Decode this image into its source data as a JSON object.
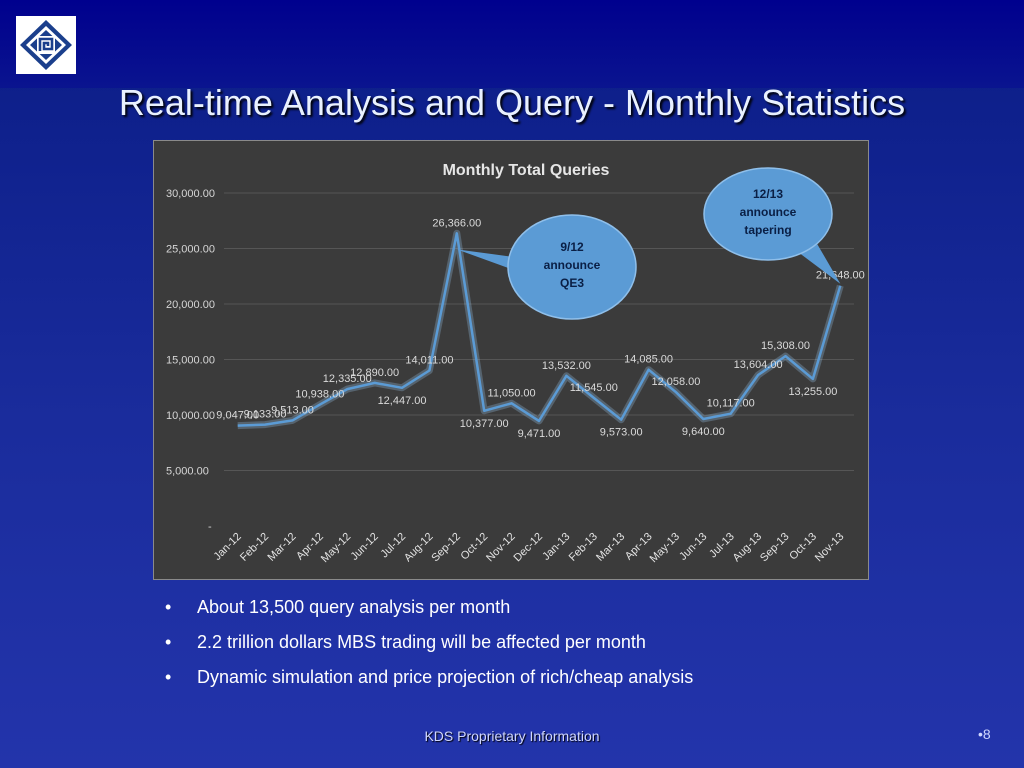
{
  "slide": {
    "title": "Real-time Analysis and Query - Monthly Statistics",
    "logo_icon": "kds-square-spiral-logo-icon",
    "footer": "KDS Proprietary Information",
    "page_number": "•8"
  },
  "bullets": [
    {
      "marker": "•",
      "text": "About 13,500  query analysis per month"
    },
    {
      "marker": "•",
      "text": "2.2 trillion dollars  MBS trading will be affected per month"
    },
    {
      "marker": "•",
      "text": "Dynamic simulation  and price projection of rich/cheap analysis"
    }
  ],
  "chart_data": {
    "type": "line",
    "title": "Monthly Total Queries",
    "xlabel": "",
    "ylabel": "",
    "ylim": [
      0,
      30000
    ],
    "yticks": [
      {
        "value": 0,
        "label": "-"
      },
      {
        "value": 5000,
        "label": "5,000.00"
      },
      {
        "value": 10000,
        "label": "10,000.00"
      },
      {
        "value": 15000,
        "label": "15,000.00"
      },
      {
        "value": 20000,
        "label": "20,000.00"
      },
      {
        "value": 25000,
        "label": "25,000.00"
      },
      {
        "value": 30000,
        "label": "30,000.00"
      }
    ],
    "grid": true,
    "line_color": "#5b9bd5",
    "categories": [
      "Jan-12",
      "Feb-12",
      "Mar-12",
      "Apr-12",
      "May-12",
      "Jun-12",
      "Jul-12",
      "Aug-12",
      "Sep-12",
      "Oct-12",
      "Nov-12",
      "Dec-12",
      "Jan-13",
      "Feb-13",
      "Mar-13",
      "Apr-13",
      "May-13",
      "Jun-13",
      "Jul-13",
      "Aug-13",
      "Sep-13",
      "Oct-13",
      "Nov-13"
    ],
    "series": [
      {
        "values": [
          9047,
          9133,
          9513,
          10938,
          12335,
          12890,
          12447,
          14011,
          26366,
          10377,
          11050,
          9471,
          13532,
          11545,
          9573,
          14085,
          12058,
          9640,
          10117,
          13604,
          15308,
          13255,
          21648
        ],
        "labels": [
          "9,047.00",
          "9,133.00",
          "9,513.00",
          "10,938.00",
          "12,335.00",
          "12,890.00",
          "12,447.00",
          "14,011.00",
          "26,366.00",
          "10,377.00",
          "11,050.00",
          "9,471.00",
          "13,532.00",
          "11,545.00",
          "9,573.00",
          "14,085.00",
          "12,058.00",
          "9,640.00",
          "10,117.00",
          "13,604.00",
          "15,308.00",
          "13,255.00",
          "21,648.00"
        ]
      }
    ],
    "annotations": [
      {
        "lines": [
          "9/12",
          "announce",
          "QE3"
        ],
        "target_category": "Sep-12",
        "color": "#5b9bd5"
      },
      {
        "lines": [
          "12/13",
          "announce",
          "tapering"
        ],
        "target_category": "Nov-13",
        "color": "#5b9bd5"
      }
    ]
  }
}
